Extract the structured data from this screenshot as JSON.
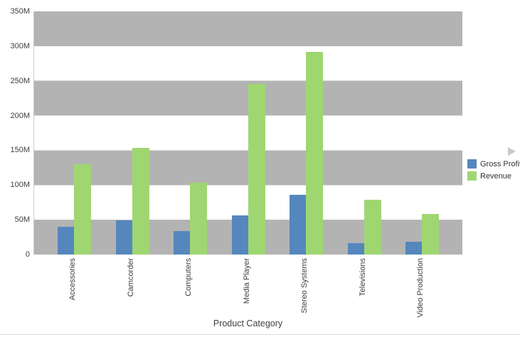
{
  "chart_data": {
    "type": "bar",
    "title": "",
    "xlabel": "Product Category",
    "ylabel": "",
    "unit": "M",
    "categories": [
      "Accessories",
      "Camcorder",
      "Computers",
      "Media Player",
      "Stereo Systems",
      "Televisions",
      "Video Production"
    ],
    "series": [
      {
        "name": "Gross Profit",
        "color": "#5587bd",
        "values": [
          40,
          49,
          34,
          56,
          86,
          16,
          18
        ]
      },
      {
        "name": "Revenue",
        "color": "#9fd672",
        "values": [
          130,
          154,
          103,
          246,
          292,
          79,
          58
        ]
      }
    ],
    "y_ticks": [
      "0",
      "50M",
      "100M",
      "150M",
      "200M",
      "250M",
      "300M",
      "350M"
    ],
    "ylim": [
      0,
      350
    ],
    "grid": "horizontal-gray-bands",
    "band_color": "#b3b3b3",
    "band_alt_color": "#ffffff",
    "legend_position": "right",
    "x_labels_rotated_degrees": 90
  },
  "icons": {
    "expander": "collapsed-panel-right-arrow"
  }
}
